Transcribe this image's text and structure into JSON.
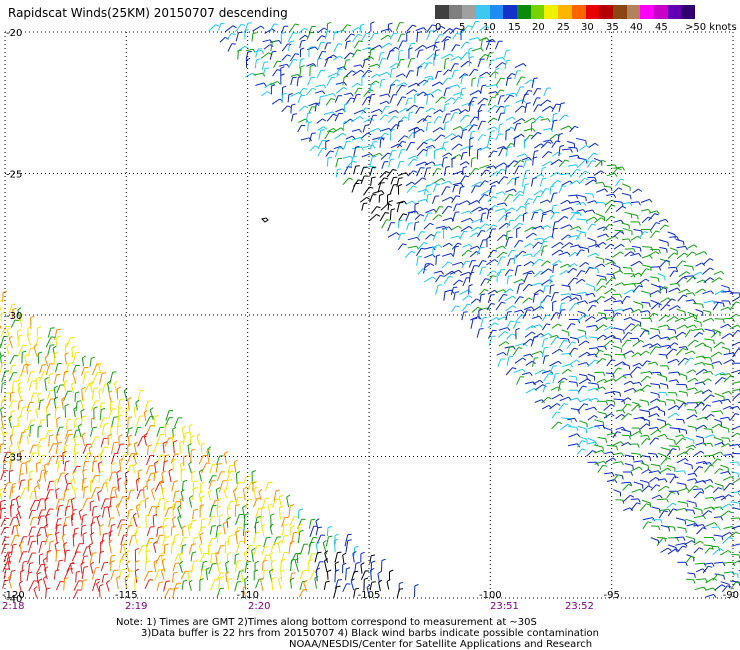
{
  "title": "Rapidscat Winds(25KM) 20150707 descending",
  "legend": {
    "colors": [
      "#404040",
      "#7f7f7f",
      "#a0a0a0",
      "#3cc8f0",
      "#1e8cf0",
      "#1432c8",
      "#0a8c0a",
      "#78d200",
      "#f0f000",
      "#ffb400",
      "#ff6400",
      "#e60000",
      "#b40000",
      "#8c4614",
      "#b4825a",
      "#ff00ff",
      "#c800c8",
      "#6400b4",
      "#32006e"
    ],
    "labels": [
      "0",
      "5",
      "10",
      "15",
      "20",
      "25",
      "30",
      "35",
      "40",
      "45",
      ">50 knots"
    ]
  },
  "map": {
    "lat_labels": [
      "-20",
      "-25",
      "-30",
      "-35",
      "-40"
    ],
    "lon_labels": [
      "-120",
      "-115",
      "-110",
      "-105",
      "-100",
      "-95",
      "-90"
    ],
    "time_labels": [
      "2:18",
      "2:19",
      "2:20",
      "23:51",
      "23:52"
    ],
    "time_color": "#800080",
    "grid": "dotted",
    "lat_range": [
      -20,
      -40
    ],
    "lon_range": [
      -120,
      -90
    ]
  },
  "swath_colors": {
    "calm": "#1ec8f0",
    "light": "#0a28c8",
    "moderate": "#14a014",
    "strong": "#f0e600",
    "stronger": "#ff8c00",
    "gale": "#e61e1e",
    "contaminated": "#000000"
  },
  "notes": {
    "line1": "Note: 1) Times are GMT 2)Times along bottom correspond to measurement at ~30S",
    "line2": "3)Data buffer is 22 hrs from 20150707 4) Black wind barbs indicate possible contamination",
    "line3": "NOAA/NESDIS/Center for Satellite Applications and Research"
  }
}
